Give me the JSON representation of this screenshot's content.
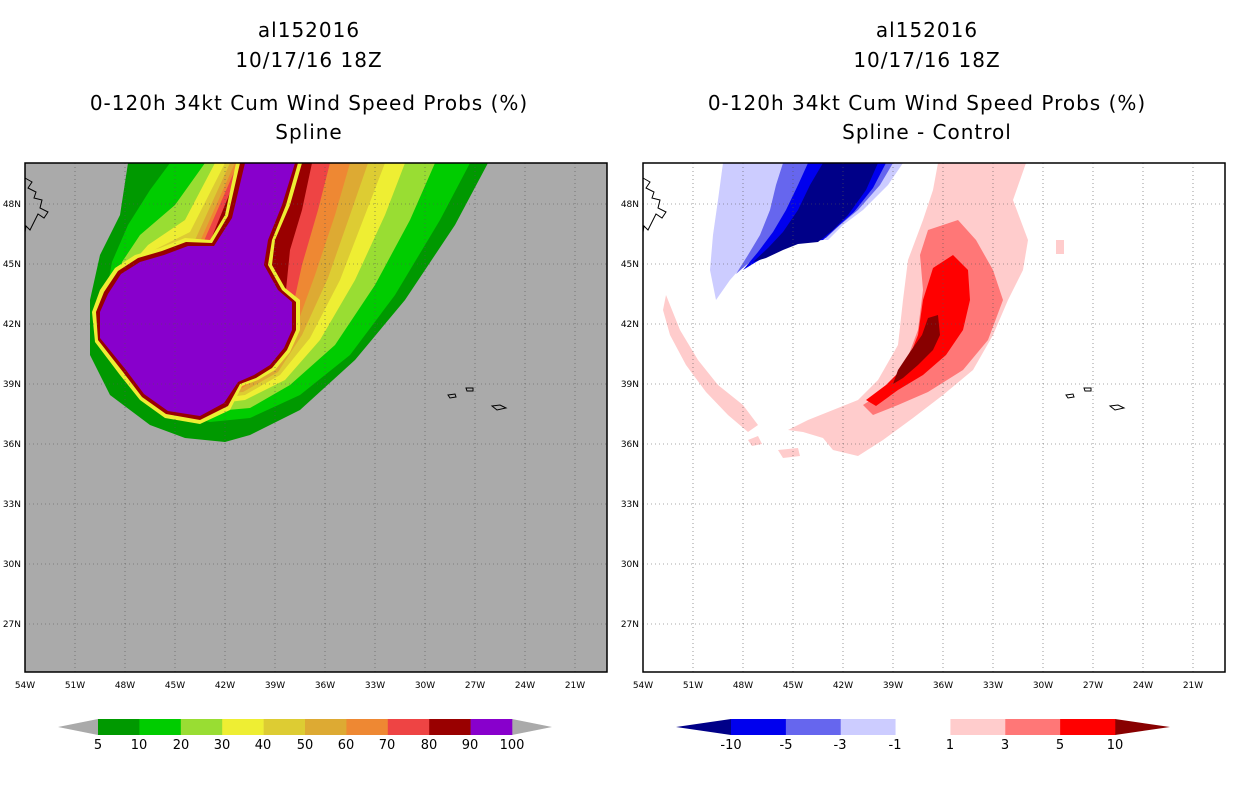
{
  "left": {
    "title_line1": "al152016",
    "title_line2": "10/17/16 18Z",
    "title_line3": "0-120h 34kt Cum Wind Speed Probs (%)",
    "title_line4": "Spline",
    "colorbar": {
      "labels": [
        "5",
        "10",
        "20",
        "30",
        "40",
        "50",
        "60",
        "70",
        "80",
        "90",
        "100"
      ],
      "colors": [
        "#009900",
        "#00cc00",
        "#99dd33",
        "#eeee33",
        "#ddcc33",
        "#ddaa33",
        "#ee8833",
        "#ee4444",
        "#990000",
        "#8800cc"
      ],
      "under_color": "#aaaaaa",
      "over_color": "#aaaaaa"
    },
    "map_background": "#aaaaaa"
  },
  "right": {
    "title_line1": "al152016",
    "title_line2": "10/17/16 18Z",
    "title_line3": "0-120h 34kt Cum Wind Speed Probs (%)",
    "title_line4": "Spline - Control",
    "colorbar": {
      "labels": [
        "-10",
        "-5",
        "-3",
        "-1",
        "1",
        "3",
        "5",
        "10"
      ],
      "colors": [
        "#0000ee",
        "#6666ee",
        "#ccccff",
        "#ffffff",
        "#ffcccc",
        "#ff7777",
        "#ff0000"
      ],
      "under_color": "#000088",
      "over_color": "#880000"
    },
    "map_background": "#ffffff"
  },
  "axes": {
    "lon_labels": [
      "54W",
      "51W",
      "48W",
      "45W",
      "42W",
      "39W",
      "36W",
      "33W",
      "30W",
      "27W",
      "24W",
      "21W"
    ],
    "lat_labels": [
      "48N",
      "45N",
      "42N",
      "39N",
      "36N",
      "33N",
      "30N",
      "27N"
    ]
  }
}
